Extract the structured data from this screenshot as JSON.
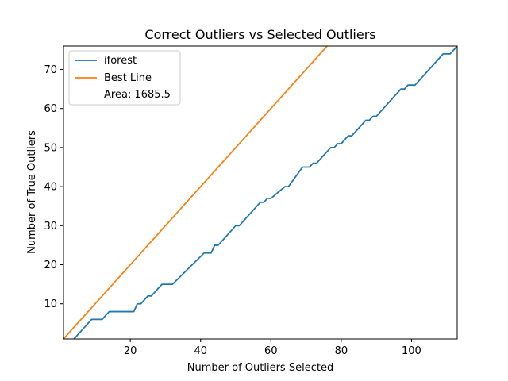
{
  "chart_data": {
    "type": "line",
    "title": "Correct Outliers vs Selected Outliers",
    "xlabel": "Number of Outliers Selected",
    "ylabel": "Number of True Outliers",
    "xlim": [
      1,
      113
    ],
    "ylim": [
      1,
      76
    ],
    "xticks": [
      20,
      40,
      60,
      80,
      100
    ],
    "yticks": [
      10,
      20,
      30,
      40,
      50,
      60,
      70
    ],
    "grid": false,
    "legend": {
      "placement": "top-left",
      "note": "Area: 1685.5"
    },
    "series": [
      {
        "name": "iforest",
        "color": "#1f77b4",
        "x": [
          1,
          3,
          4,
          5,
          9,
          12,
          14,
          15,
          16,
          21,
          22,
          23,
          24,
          25,
          26,
          27,
          29,
          32,
          41,
          42,
          43,
          44,
          45,
          50,
          51,
          57,
          58,
          59,
          60,
          64,
          65,
          69,
          70,
          71,
          72,
          73,
          77,
          78,
          79,
          80,
          82,
          83,
          84,
          87,
          88,
          89,
          90,
          97,
          98,
          99,
          100,
          101,
          109,
          110,
          111,
          113
        ],
        "y": [
          0,
          0,
          1,
          2,
          6,
          6,
          8,
          8,
          8,
          8,
          10,
          10,
          11,
          12,
          12,
          13,
          15,
          15,
          23,
          23,
          23,
          25,
          25,
          30,
          30,
          36,
          36,
          37,
          37,
          40,
          40,
          45,
          45,
          45,
          46,
          46,
          50,
          50,
          51,
          51,
          53,
          53,
          54,
          57,
          57,
          58,
          58,
          65,
          65,
          66,
          66,
          66,
          74,
          74,
          74,
          76
        ]
      },
      {
        "name": "Best Line",
        "color": "#ff7f0e",
        "x": [
          1,
          76
        ],
        "y": [
          1,
          76
        ]
      }
    ]
  }
}
